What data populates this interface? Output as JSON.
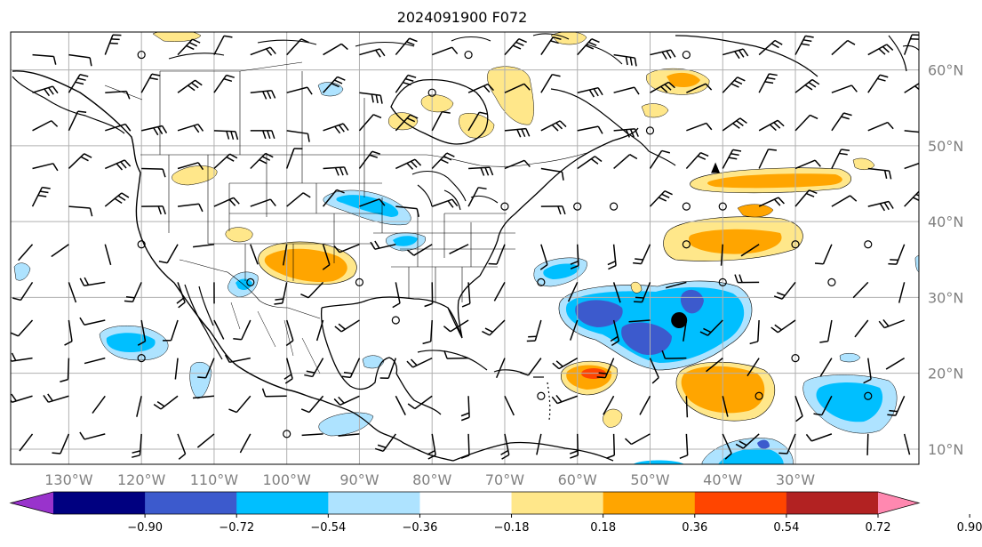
{
  "title": "2024091900 F072",
  "map": {
    "lon_range": [
      -138,
      -13
    ],
    "lat_range": [
      8,
      65
    ],
    "meridians": [
      -130,
      -120,
      -110,
      -100,
      -90,
      -80,
      -70,
      -60,
      -50,
      -40,
      -30
    ],
    "parallels": [
      10,
      20,
      30,
      40,
      50,
      60
    ],
    "lon_labels": [
      "130°W",
      "120°W",
      "110°W",
      "100°W",
      "90°W",
      "80°W",
      "70°W",
      "60°W",
      "50°W",
      "40°W",
      "30°W"
    ],
    "lat_labels": [
      "10°N",
      "20°N",
      "30°N",
      "40°N",
      "50°N",
      "60°N"
    ]
  },
  "colorbar": {
    "boundaries": [
      "−0.90",
      "−0.72",
      "−0.54",
      "−0.36",
      "−0.18",
      "0.18",
      "0.36",
      "0.54",
      "0.72",
      "0.90"
    ],
    "colors": [
      "#9933cc",
      "#000080",
      "#3c5acd",
      "#00bfff",
      "#aee3ff",
      "#ffffff",
      "#ffe78a",
      "#ffa500",
      "#ff4500",
      "#b22222",
      "#ff88b0"
    ]
  },
  "markers": [
    {
      "kind": "cyclone",
      "lon": -46,
      "lat": 27,
      "color": "#000000"
    },
    {
      "kind": "high",
      "lon": -41,
      "lat": 47,
      "color": "#000000"
    }
  ],
  "anomaly_regions": [
    {
      "name": "central-atlantic-negative",
      "level": "−0.72",
      "color": "#3c5acd",
      "lon": -58,
      "lat": 27
    },
    {
      "name": "caribbean-positive",
      "level": "0.54",
      "color": "#ffa500",
      "lon": -47,
      "lat": 21
    },
    {
      "name": "southern-plains-positive",
      "level": "0.54",
      "color": "#ffa500",
      "lon": -102,
      "lat": 35
    },
    {
      "name": "mid-atlantic-positive",
      "level": "0.54",
      "color": "#ffa500",
      "lon": -43,
      "lat": 44
    }
  ]
}
